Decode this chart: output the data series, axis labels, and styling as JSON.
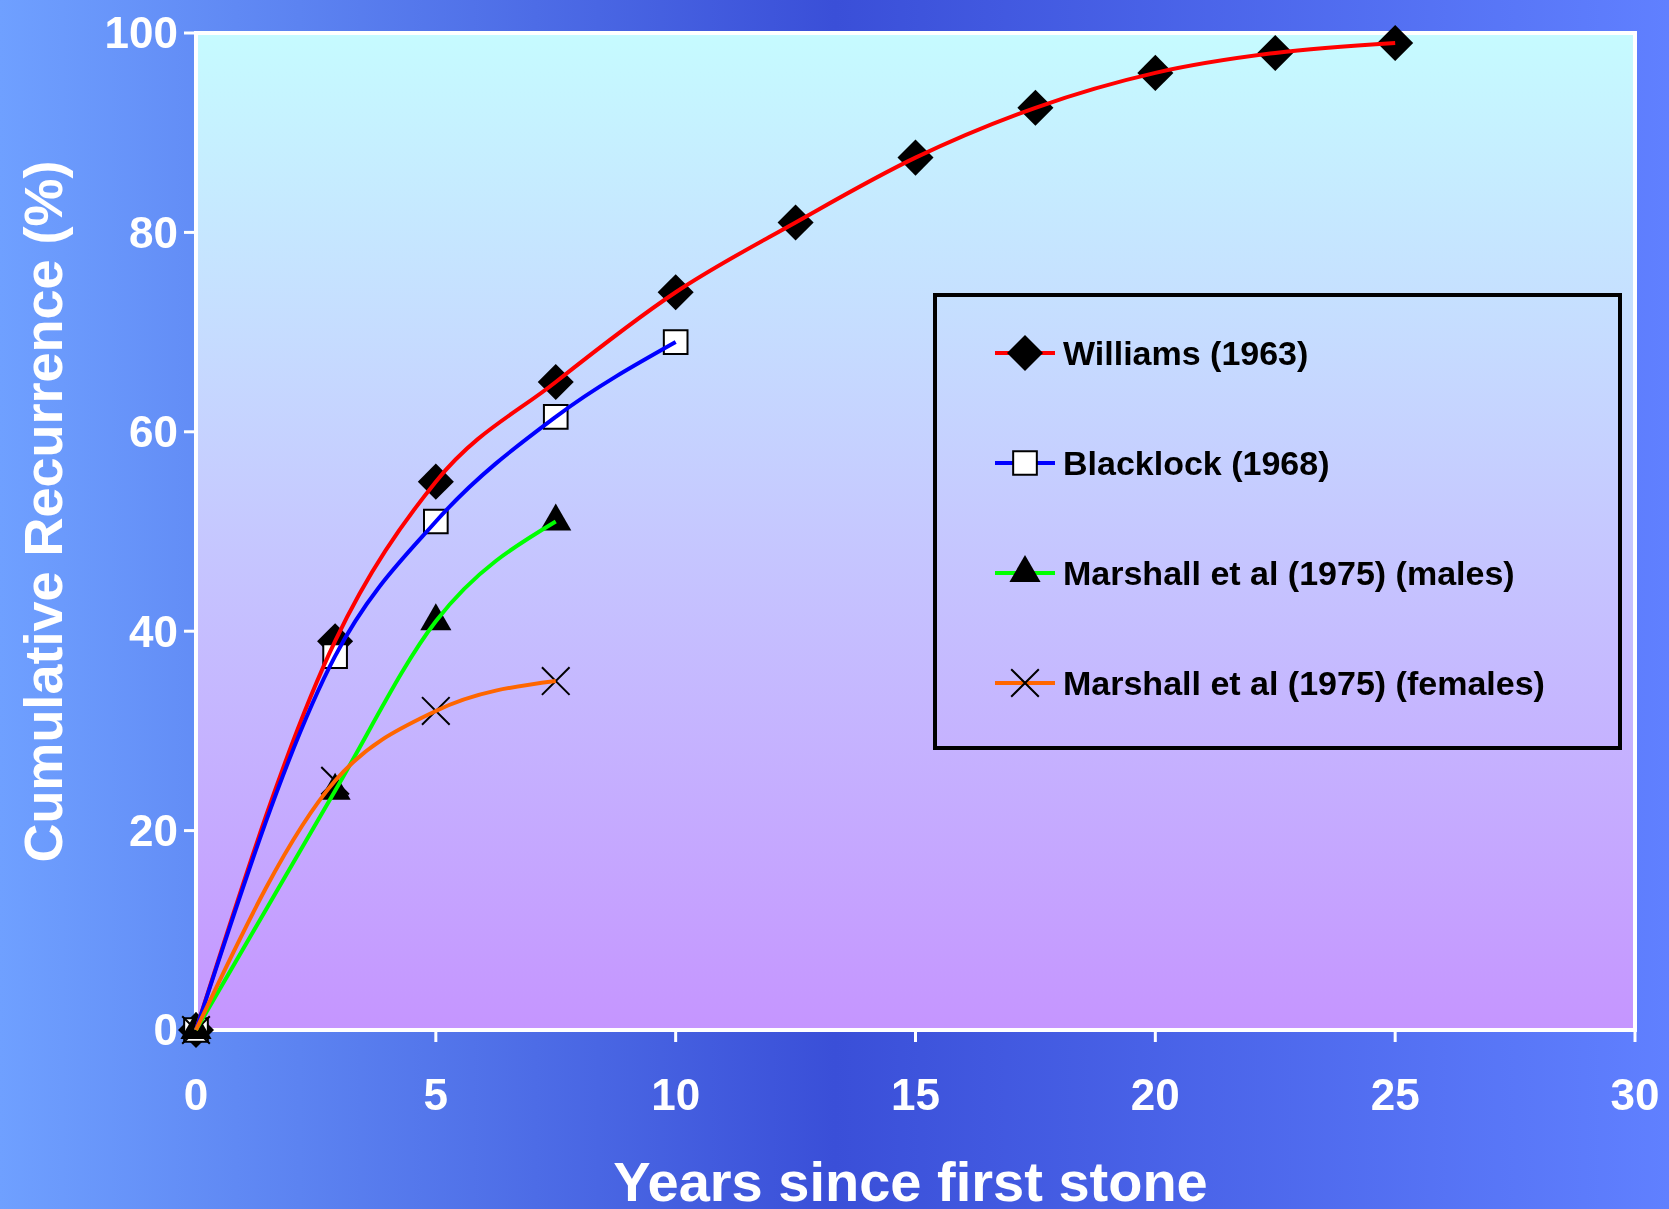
{
  "chart_data": {
    "type": "line",
    "xlabel": "Years since first stone",
    "ylabel": "Cumulative Recurrence (%)",
    "xlim": [
      0,
      30
    ],
    "xticks": [
      0,
      5,
      10,
      15,
      20,
      25,
      30
    ],
    "ylim": [
      0,
      100
    ],
    "yticks": [
      0,
      20,
      40,
      60,
      80,
      100
    ],
    "grid": false,
    "legend": "right",
    "series": [
      {
        "name": "Williams (1963)",
        "color": "#ff0000",
        "marker": "diamond",
        "x": [
          0,
          2.9,
          5,
          7.5,
          10,
          12.5,
          15,
          17.5,
          20,
          22.5,
          25
        ],
        "values": [
          0,
          39,
          55,
          65,
          74,
          81,
          87.5,
          92.5,
          96,
          98,
          99
        ]
      },
      {
        "name": "Blacklock (1968)",
        "color": "#0000ff",
        "marker": "square",
        "x": [
          0,
          2.9,
          5,
          7.5,
          10
        ],
        "values": [
          0,
          37.5,
          51,
          61.5,
          69
        ]
      },
      {
        "name": "Marshall et al (1975) (males)",
        "color": "#00ff00",
        "marker": "triangle",
        "x": [
          0,
          2.9,
          5,
          7.5
        ],
        "values": [
          0,
          24,
          41,
          51
        ]
      },
      {
        "name": "Marshall et al (1975) (females)",
        "color": "#ff6600",
        "marker": "cross",
        "x": [
          0,
          2.9,
          5,
          7.5
        ],
        "values": [
          0,
          25,
          32,
          35
        ]
      }
    ]
  }
}
